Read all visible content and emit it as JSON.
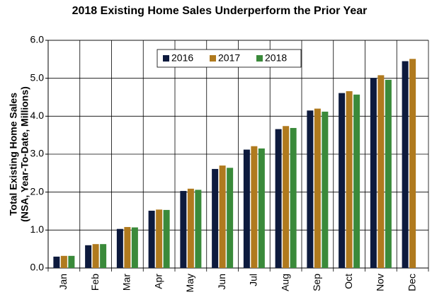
{
  "chart_data": {
    "type": "bar",
    "title": "2018 Existing Home Sales Underperform the Prior Year",
    "ylabel": [
      "Total Existing Home Sales",
      "(NSA, Year-To-Date, Millions)"
    ],
    "categories": [
      "Jan",
      "Feb",
      "Mar",
      "Apr",
      "May",
      "Jun",
      "Jul",
      "Aug",
      "Sep",
      "Oct",
      "Nov",
      "Dec"
    ],
    "series": [
      {
        "name": "2016",
        "color": "#0d1a3d",
        "values": [
          0.3,
          0.6,
          1.03,
          1.51,
          2.03,
          2.61,
          3.12,
          3.66,
          4.15,
          4.61,
          5.01,
          5.45
        ]
      },
      {
        "name": "2017",
        "color": "#b07a1e",
        "values": [
          0.32,
          0.63,
          1.08,
          1.54,
          2.09,
          2.7,
          3.21,
          3.74,
          4.2,
          4.66,
          5.08,
          5.51
        ]
      },
      {
        "name": "2018",
        "color": "#3a8a3a",
        "values": [
          0.32,
          0.63,
          1.07,
          1.53,
          2.06,
          2.64,
          3.15,
          3.69,
          4.12,
          4.57,
          4.96,
          null
        ]
      }
    ],
    "ylim": [
      0,
      6
    ],
    "yticks": [
      {
        "value": 0,
        "label": "0.0"
      },
      {
        "value": 1,
        "label": "1.0"
      },
      {
        "value": 2,
        "label": "2.0"
      },
      {
        "value": 3,
        "label": "3.0"
      },
      {
        "value": 4,
        "label": "4.0"
      },
      {
        "value": 5,
        "label": "5.0"
      },
      {
        "value": 6,
        "label": "6.0"
      }
    ],
    "grid": true,
    "legend": "top"
  }
}
